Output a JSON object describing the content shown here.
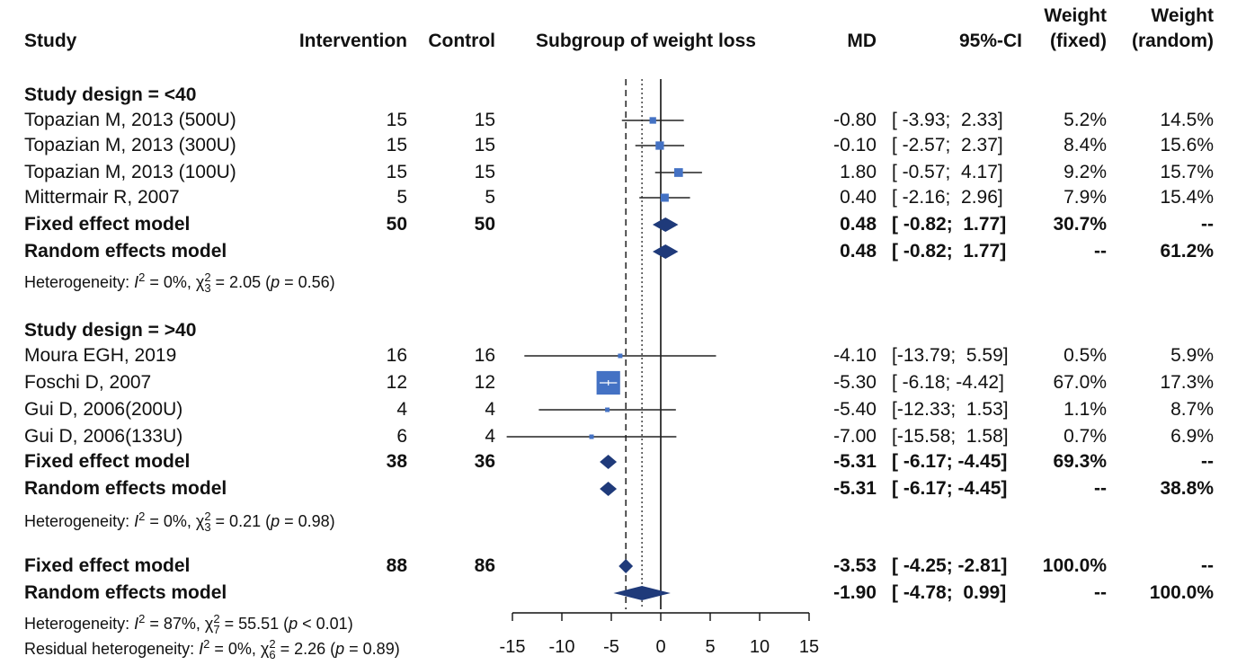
{
  "headers": {
    "study": "Study",
    "intervention": "Intervention",
    "control": "Control",
    "subgroup": "Subgroup of weight loss",
    "md": "MD",
    "ci": "95%-CI",
    "weight_fixed_1": "Weight",
    "weight_fixed_2": "(fixed)",
    "weight_random_1": "Weight",
    "weight_random_2": "(random)"
  },
  "rows": [
    {
      "kind": "group",
      "label": "Study design = <40"
    },
    {
      "kind": "study",
      "label": "Topazian M, 2013 (500U)",
      "n1": "15",
      "n2": "15",
      "md": "-0.80",
      "ci": "[ -3.93;  2.33]",
      "wf": "5.2%",
      "wr": "14.5%"
    },
    {
      "kind": "study",
      "label": "Topazian M, 2013 (300U)",
      "n1": "15",
      "n2": "15",
      "md": "-0.10",
      "ci": "[ -2.57;  2.37]",
      "wf": "8.4%",
      "wr": "15.6%"
    },
    {
      "kind": "study",
      "label": "Topazian M, 2013 (100U)",
      "n1": "15",
      "n2": "15",
      "md": "1.80",
      "ci": "[ -0.57;  4.17]",
      "wf": "9.2%",
      "wr": "15.7%"
    },
    {
      "kind": "study",
      "label": "Mittermair R, 2007",
      "n1": "5",
      "n2": "5",
      "md": "0.40",
      "ci": "[ -2.16;  2.96]",
      "wf": "7.9%",
      "wr": "15.4%"
    },
    {
      "kind": "fixed",
      "label": "Fixed effect model",
      "n1": "50",
      "n2": "50",
      "md": "0.48",
      "ci": "[ -0.82;  1.77]",
      "wf": "30.7%",
      "wr": "--"
    },
    {
      "kind": "random",
      "label": "Random effects model",
      "n1": "",
      "n2": "",
      "md": "0.48",
      "ci": "[ -0.82;  1.77]",
      "wf": "--",
      "wr": "61.2%"
    },
    {
      "kind": "het",
      "label": "Heterogeneity: ",
      "i2": "I",
      "i2val": " = 0%, ",
      "chi": "χ",
      "chisub": "3",
      "chival": " = 2.05 (",
      "p": "p",
      "pval": " = 0.56)"
    },
    {
      "kind": "group",
      "label": "Study design = >40"
    },
    {
      "kind": "study",
      "label": "Moura EGH, 2019",
      "n1": "16",
      "n2": "16",
      "md": "-4.10",
      "ci": "[-13.79;  5.59]",
      "wf": "0.5%",
      "wr": "5.9%"
    },
    {
      "kind": "study",
      "label": "Foschi D, 2007",
      "n1": "12",
      "n2": "12",
      "md": "-5.30",
      "ci": "[ -6.18; -4.42]",
      "wf": "67.0%",
      "wr": "17.3%"
    },
    {
      "kind": "study",
      "label": "Gui D, 2006(200U)",
      "n1": "4",
      "n2": "4",
      "md": "-5.40",
      "ci": "[-12.33;  1.53]",
      "wf": "1.1%",
      "wr": "8.7%"
    },
    {
      "kind": "study",
      "label": "Gui D, 2006(133U)",
      "n1": "6",
      "n2": "4",
      "md": "-7.00",
      "ci": "[-15.58;  1.58]",
      "wf": "0.7%",
      "wr": "6.9%"
    },
    {
      "kind": "fixed",
      "label": "Fixed effect model",
      "n1": "38",
      "n2": "36",
      "md": "-5.31",
      "ci": "[ -6.17; -4.45]",
      "wf": "69.3%",
      "wr": "--"
    },
    {
      "kind": "random",
      "label": "Random effects model",
      "n1": "",
      "n2": "",
      "md": "-5.31",
      "ci": "[ -6.17; -4.45]",
      "wf": "--",
      "wr": "38.8%"
    },
    {
      "kind": "het",
      "label": "Heterogeneity: ",
      "i2": "I",
      "i2val": " = 0%, ",
      "chi": "χ",
      "chisub": "3",
      "chival": " = 0.21 (",
      "p": "p",
      "pval": " = 0.98)"
    },
    {
      "kind": "fixed",
      "label": "Fixed effect model",
      "n1": "88",
      "n2": "86",
      "md": "-3.53",
      "ci": "[ -4.25; -2.81]",
      "wf": "100.0%",
      "wr": "--"
    },
    {
      "kind": "random",
      "label": "Random effects model",
      "n1": "",
      "n2": "",
      "md": "-1.90",
      "ci": "[ -4.78;  0.99]",
      "wf": "--",
      "wr": "100.0%"
    },
    {
      "kind": "het",
      "label": "Heterogeneity: ",
      "i2": "I",
      "i2val": " = 87%, ",
      "chi": "χ",
      "chisub": "7",
      "chival": " = 55.51 (",
      "p": "p",
      "pval": " < 0.01)"
    },
    {
      "kind": "het",
      "label": "Residual heterogeneity: ",
      "i2": "I",
      "i2val": " = 0%, ",
      "chi": "χ",
      "chisub": "6",
      "chival": " = 2.26 (",
      "p": "p",
      "pval": " = 0.89)"
    }
  ],
  "chart_data": {
    "type": "forest",
    "xlim": [
      -15,
      15
    ],
    "ticks": [
      -15,
      -10,
      -5,
      0,
      5,
      10,
      15
    ],
    "tick_labels": [
      "-15",
      "-10",
      "-5",
      "0",
      "5",
      "10",
      "15"
    ],
    "reference_lines": {
      "null": 0,
      "fixed_overall": -3.53,
      "random_overall": -1.9
    },
    "studies": [
      {
        "name": "Topazian M, 2013 (500U)",
        "md": -0.8,
        "lower": -3.93,
        "upper": 2.33,
        "weight_fixed": 5.2
      },
      {
        "name": "Topazian M, 2013 (300U)",
        "md": -0.1,
        "lower": -2.57,
        "upper": 2.37,
        "weight_fixed": 8.4
      },
      {
        "name": "Topazian M, 2013 (100U)",
        "md": 1.8,
        "lower": -0.57,
        "upper": 4.17,
        "weight_fixed": 9.2
      },
      {
        "name": "Mittermair R, 2007",
        "md": 0.4,
        "lower": -2.16,
        "upper": 2.96,
        "weight_fixed": 7.9
      },
      {
        "name": "Moura EGH, 2019",
        "md": -4.1,
        "lower": -13.79,
        "upper": 5.59,
        "weight_fixed": 0.5
      },
      {
        "name": "Foschi D, 2007",
        "md": -5.3,
        "lower": -6.18,
        "upper": -4.42,
        "weight_fixed": 67.0
      },
      {
        "name": "Gui D, 2006(200U)",
        "md": -5.4,
        "lower": -12.33,
        "upper": 1.53,
        "weight_fixed": 1.1
      },
      {
        "name": "Gui D, 2006(133U)",
        "md": -7.0,
        "lower": -15.58,
        "upper": 1.58,
        "weight_fixed": 0.7
      }
    ],
    "summaries": [
      {
        "name": "Fixed effect model (<40)",
        "md": 0.48,
        "lower": -0.82,
        "upper": 1.77
      },
      {
        "name": "Random effects model (<40)",
        "md": 0.48,
        "lower": -0.82,
        "upper": 1.77
      },
      {
        "name": "Fixed effect model (>40)",
        "md": -5.31,
        "lower": -6.17,
        "upper": -4.45
      },
      {
        "name": "Random effects model (>40)",
        "md": -5.31,
        "lower": -6.17,
        "upper": -4.45
      },
      {
        "name": "Fixed effect model",
        "md": -3.53,
        "lower": -4.25,
        "upper": -2.81
      },
      {
        "name": "Random effects model",
        "md": -1.9,
        "lower": -4.78,
        "upper": 0.99
      }
    ],
    "colors": {
      "square": "#4472C4",
      "diamond": "#1F3A7A",
      "line": "#222222"
    }
  }
}
